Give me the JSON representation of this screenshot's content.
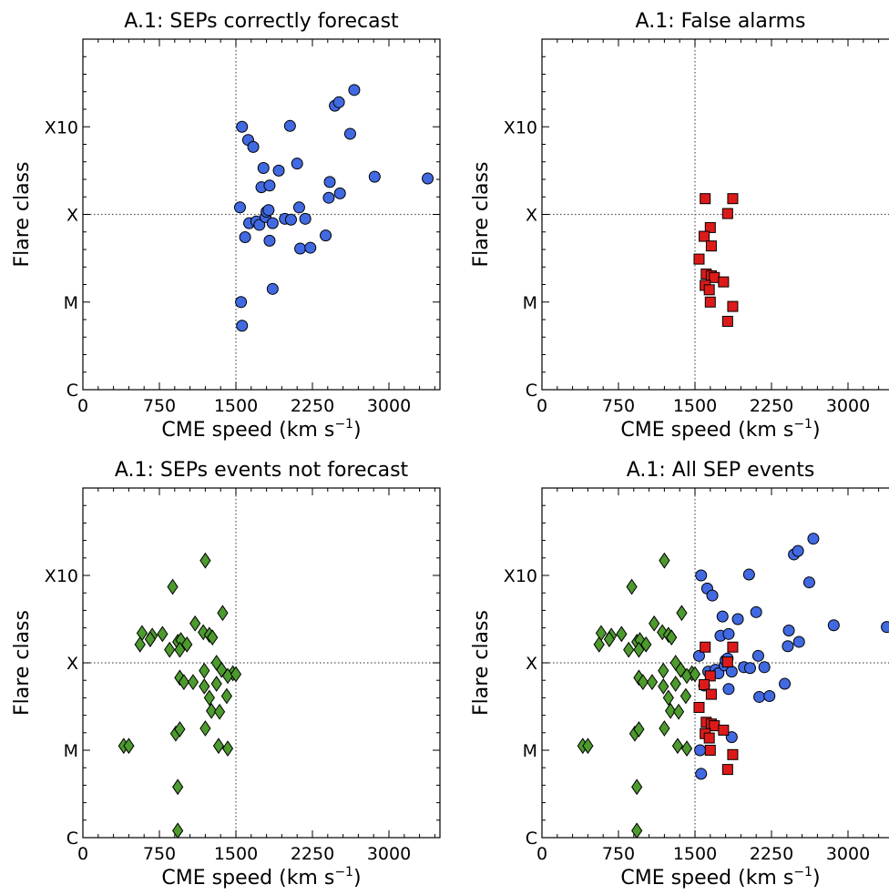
{
  "colors": {
    "blue": "#4169e1",
    "red": "#dd1a1a",
    "green": "#4d9a2e",
    "edge": "#000000",
    "refline": "#555555"
  },
  "axes": {
    "xlabel_main": "CME speed (km s",
    "xlabel_exp": "−1",
    "xlabel_close": ")",
    "ylabel": "Flare class",
    "xticks": [
      0,
      750,
      1500,
      2250,
      3000
    ],
    "xlim": [
      0,
      3500
    ],
    "ylim": [
      0,
      4
    ],
    "yticks": [
      {
        "v": 0,
        "label": "C"
      },
      {
        "v": 1,
        "label": "M"
      },
      {
        "v": 2,
        "label": "X"
      },
      {
        "v": 3,
        "label": "X10"
      }
    ],
    "ref_x": 1500,
    "ref_y": 2
  },
  "chart_data": [
    {
      "type": "scatter",
      "title": "A.1: SEPs correctly forecast",
      "xlabel": "CME speed (km s−1)",
      "ylabel": "Flare class",
      "xlim": [
        0,
        3500
      ],
      "ylim": [
        0,
        4
      ],
      "series": [
        {
          "marker": "circle",
          "color": "blue",
          "points": [
            [
              1560,
              3.0
            ],
            [
              1620,
              2.85
            ],
            [
              1670,
              2.77
            ],
            [
              1770,
              2.53
            ],
            [
              1750,
              2.31
            ],
            [
              1830,
              2.33
            ],
            [
              1920,
              2.5
            ],
            [
              2030,
              3.01
            ],
            [
              2100,
              2.58
            ],
            [
              2620,
              2.92
            ],
            [
              2470,
              3.24
            ],
            [
              2510,
              3.28
            ],
            [
              2660,
              3.42
            ],
            [
              2860,
              2.43
            ],
            [
              3380,
              2.41
            ],
            [
              2420,
              2.37
            ],
            [
              2410,
              2.19
            ],
            [
              2520,
              2.24
            ],
            [
              1540,
              2.08
            ],
            [
              2120,
              2.08
            ],
            [
              1630,
              1.9
            ],
            [
              1700,
              1.92
            ],
            [
              1730,
              1.88
            ],
            [
              1790,
              1.97
            ],
            [
              1800,
              2.03
            ],
            [
              1820,
              2.05
            ],
            [
              1860,
              1.9
            ],
            [
              1980,
              1.95
            ],
            [
              2040,
              1.94
            ],
            [
              2180,
              1.95
            ],
            [
              2380,
              1.76
            ],
            [
              1590,
              1.74
            ],
            [
              1830,
              1.7
            ],
            [
              2130,
              1.61
            ],
            [
              2230,
              1.62
            ],
            [
              1860,
              1.15
            ],
            [
              1550,
              1.0
            ],
            [
              1560,
              0.73
            ]
          ]
        }
      ]
    },
    {
      "type": "scatter",
      "title": "A.1: False alarms",
      "xlabel": "CME speed (km s−1)",
      "ylabel": "Flare class",
      "xlim": [
        0,
        3500
      ],
      "ylim": [
        0,
        4
      ],
      "series": [
        {
          "marker": "square",
          "color": "red",
          "points": [
            [
              1600,
              2.18
            ],
            [
              1870,
              2.18
            ],
            [
              1820,
              2.01
            ],
            [
              1650,
              1.85
            ],
            [
              1590,
              1.75
            ],
            [
              1660,
              1.64
            ],
            [
              1540,
              1.49
            ],
            [
              1610,
              1.32
            ],
            [
              1660,
              1.3
            ],
            [
              1690,
              1.28
            ],
            [
              1780,
              1.23
            ],
            [
              1600,
              1.19
            ],
            [
              1640,
              1.14
            ],
            [
              1650,
              1.0
            ],
            [
              1870,
              0.95
            ],
            [
              1820,
              0.78
            ]
          ]
        }
      ]
    },
    {
      "type": "scatter",
      "title": "A.1: SEPs events not forecast",
      "xlabel": "CME speed (km s−1)",
      "ylabel": "Flare class",
      "xlim": [
        0,
        3500
      ],
      "ylim": [
        0,
        4
      ],
      "series": [
        {
          "marker": "diamond",
          "color": "green",
          "points": [
            [
              880,
              2.87
            ],
            [
              1200,
              3.17
            ],
            [
              1370,
              2.57
            ],
            [
              580,
              2.34
            ],
            [
              680,
              2.31
            ],
            [
              780,
              2.33
            ],
            [
              1100,
              2.45
            ],
            [
              1180,
              2.35
            ],
            [
              1240,
              2.32
            ],
            [
              1270,
              2.29
            ],
            [
              560,
              2.21
            ],
            [
              660,
              2.27
            ],
            [
              930,
              2.24
            ],
            [
              960,
              2.26
            ],
            [
              1020,
              2.21
            ],
            [
              850,
              2.15
            ],
            [
              950,
              2.15
            ],
            [
              1310,
              2.0
            ],
            [
              1190,
              1.91
            ],
            [
              1360,
              1.92
            ],
            [
              1470,
              1.88
            ],
            [
              1420,
              1.85
            ],
            [
              1500,
              1.87
            ],
            [
              950,
              1.83
            ],
            [
              990,
              1.78
            ],
            [
              1080,
              1.78
            ],
            [
              1190,
              1.73
            ],
            [
              1310,
              1.76
            ],
            [
              1410,
              1.62
            ],
            [
              1240,
              1.6
            ],
            [
              1260,
              1.45
            ],
            [
              1340,
              1.44
            ],
            [
              910,
              1.19
            ],
            [
              950,
              1.24
            ],
            [
              1200,
              1.25
            ],
            [
              400,
              1.05
            ],
            [
              450,
              1.05
            ],
            [
              1330,
              1.05
            ],
            [
              1420,
              1.02
            ],
            [
              930,
              0.58
            ],
            [
              930,
              0.08
            ]
          ]
        }
      ]
    },
    {
      "type": "scatter",
      "title": "A.1: All SEP events",
      "xlabel": "CME speed (km s−1)",
      "ylabel": "Flare class",
      "xlim": [
        0,
        3500
      ],
      "ylim": [
        0,
        4
      ],
      "series": [
        {
          "marker": "diamond",
          "color": "green",
          "points": [
            [
              880,
              2.87
            ],
            [
              1200,
              3.17
            ],
            [
              1370,
              2.57
            ],
            [
              580,
              2.34
            ],
            [
              680,
              2.31
            ],
            [
              780,
              2.33
            ],
            [
              1100,
              2.45
            ],
            [
              1180,
              2.35
            ],
            [
              1240,
              2.32
            ],
            [
              1270,
              2.29
            ],
            [
              560,
              2.21
            ],
            [
              660,
              2.27
            ],
            [
              930,
              2.24
            ],
            [
              960,
              2.26
            ],
            [
              1020,
              2.21
            ],
            [
              850,
              2.15
            ],
            [
              950,
              2.15
            ],
            [
              1310,
              2.0
            ],
            [
              1190,
              1.91
            ],
            [
              1360,
              1.92
            ],
            [
              1470,
              1.88
            ],
            [
              1420,
              1.85
            ],
            [
              1500,
              1.87
            ],
            [
              950,
              1.83
            ],
            [
              990,
              1.78
            ],
            [
              1080,
              1.78
            ],
            [
              1190,
              1.73
            ],
            [
              1310,
              1.76
            ],
            [
              1410,
              1.62
            ],
            [
              1240,
              1.6
            ],
            [
              1260,
              1.45
            ],
            [
              1340,
              1.44
            ],
            [
              910,
              1.19
            ],
            [
              950,
              1.24
            ],
            [
              1200,
              1.25
            ],
            [
              400,
              1.05
            ],
            [
              450,
              1.05
            ],
            [
              1330,
              1.05
            ],
            [
              1420,
              1.02
            ],
            [
              930,
              0.58
            ],
            [
              930,
              0.08
            ]
          ]
        },
        {
          "marker": "circle",
          "color": "blue",
          "points": [
            [
              1560,
              3.0
            ],
            [
              1620,
              2.85
            ],
            [
              1670,
              2.77
            ],
            [
              1770,
              2.53
            ],
            [
              1750,
              2.31
            ],
            [
              1830,
              2.33
            ],
            [
              1920,
              2.5
            ],
            [
              2030,
              3.01
            ],
            [
              2100,
              2.58
            ],
            [
              2620,
              2.92
            ],
            [
              2470,
              3.24
            ],
            [
              2510,
              3.28
            ],
            [
              2660,
              3.42
            ],
            [
              2860,
              2.43
            ],
            [
              3380,
              2.41
            ],
            [
              2420,
              2.37
            ],
            [
              2410,
              2.19
            ],
            [
              2520,
              2.24
            ],
            [
              1540,
              2.08
            ],
            [
              2120,
              2.08
            ],
            [
              1630,
              1.9
            ],
            [
              1700,
              1.92
            ],
            [
              1730,
              1.88
            ],
            [
              1790,
              1.97
            ],
            [
              1800,
              2.03
            ],
            [
              1820,
              2.05
            ],
            [
              1860,
              1.9
            ],
            [
              1980,
              1.95
            ],
            [
              2040,
              1.94
            ],
            [
              2180,
              1.95
            ],
            [
              2380,
              1.76
            ],
            [
              1590,
              1.74
            ],
            [
              1830,
              1.7
            ],
            [
              2130,
              1.61
            ],
            [
              2230,
              1.62
            ],
            [
              1860,
              1.15
            ],
            [
              1550,
              1.0
            ],
            [
              1560,
              0.73
            ]
          ]
        },
        {
          "marker": "square",
          "color": "red",
          "points": [
            [
              1600,
              2.18
            ],
            [
              1870,
              2.18
            ],
            [
              1820,
              2.01
            ],
            [
              1650,
              1.85
            ],
            [
              1590,
              1.75
            ],
            [
              1660,
              1.64
            ],
            [
              1540,
              1.49
            ],
            [
              1610,
              1.32
            ],
            [
              1660,
              1.3
            ],
            [
              1690,
              1.28
            ],
            [
              1780,
              1.23
            ],
            [
              1600,
              1.19
            ],
            [
              1640,
              1.14
            ],
            [
              1650,
              1.0
            ],
            [
              1870,
              0.95
            ],
            [
              1820,
              0.78
            ]
          ]
        }
      ]
    }
  ]
}
